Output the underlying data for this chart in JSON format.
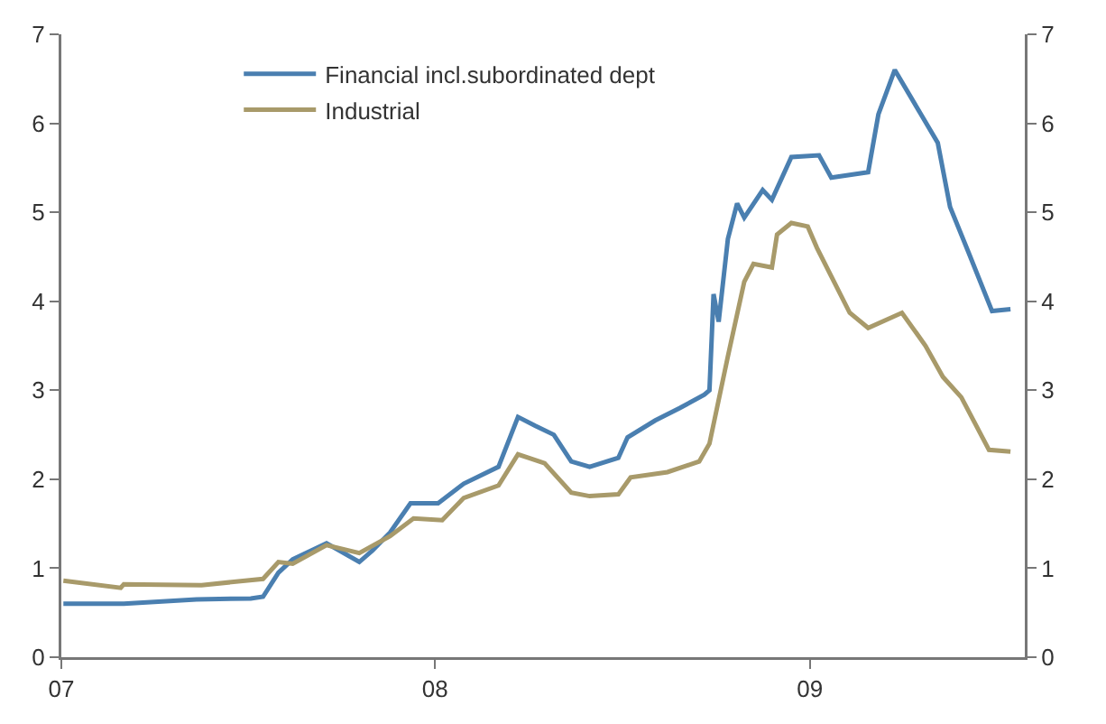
{
  "chart_data": {
    "type": "line",
    "series": [
      {
        "name": "Financial incl.subordinated dept",
        "color": "#4a7fb0",
        "x": [
          "2007-01-03",
          "2007-03-03",
          "2007-05-13",
          "2007-07-05",
          "2007-07-17",
          "2007-08-01",
          "2007-08-15",
          "2007-09-17",
          "2007-10-19",
          "2007-11-01",
          "2007-11-18",
          "2007-12-08",
          "2008-01-04",
          "2008-01-29",
          "2008-03-03",
          "2008-03-22",
          "2008-04-08",
          "2008-04-26",
          "2008-05-13",
          "2008-05-31",
          "2008-06-28",
          "2008-07-07",
          "2008-08-03",
          "2008-08-27",
          "2008-09-20",
          "2008-09-25",
          "2008-09-29",
          "2008-10-04",
          "2008-10-13",
          "2008-10-22",
          "2008-10-29",
          "2008-11-16",
          "2008-11-25",
          "2008-12-14",
          "2009-01-10",
          "2009-01-22",
          "2009-02-27",
          "2009-03-09",
          "2009-03-25",
          "2009-05-06",
          "2009-05-18",
          "2009-06-05",
          "2009-06-28",
          "2009-07-16"
        ],
        "values": [
          0.6,
          0.6,
          0.65,
          0.66,
          0.68,
          0.95,
          1.1,
          1.28,
          1.07,
          1.2,
          1.4,
          1.73,
          1.73,
          1.95,
          2.14,
          2.7,
          2.6,
          2.5,
          2.2,
          2.14,
          2.24,
          2.47,
          2.66,
          2.8,
          2.95,
          3.0,
          4.08,
          3.77,
          4.7,
          5.1,
          4.94,
          5.25,
          5.14,
          5.62,
          5.64,
          5.39,
          5.45,
          6.1,
          6.6,
          5.78,
          5.06,
          4.55,
          3.89,
          3.91
        ]
      },
      {
        "name": "Industrial",
        "color": "#a89a6a",
        "x": [
          "2007-01-03",
          "2007-02-28",
          "2007-03-03",
          "2007-05-18",
          "2007-07-17",
          "2007-08-01",
          "2007-08-15",
          "2007-09-17",
          "2007-10-19",
          "2007-11-18",
          "2007-12-11",
          "2008-01-08",
          "2008-01-29",
          "2008-03-03",
          "2008-03-22",
          "2008-04-17",
          "2008-05-13",
          "2008-05-31",
          "2008-06-28",
          "2008-07-10",
          "2008-08-15",
          "2008-09-15",
          "2008-09-25",
          "2008-10-13",
          "2008-10-29",
          "2008-11-07",
          "2008-11-25",
          "2008-11-30",
          "2008-12-14",
          "2008-12-30",
          "2009-01-08",
          "2009-01-22",
          "2009-02-09",
          "2009-02-27",
          "2009-04-01",
          "2009-04-24",
          "2009-05-11",
          "2009-05-29",
          "2009-06-25",
          "2009-07-16"
        ],
        "values": [
          0.86,
          0.78,
          0.82,
          0.81,
          0.88,
          1.07,
          1.05,
          1.26,
          1.17,
          1.36,
          1.56,
          1.54,
          1.79,
          1.93,
          2.28,
          2.18,
          1.85,
          1.81,
          1.83,
          2.02,
          2.08,
          2.2,
          2.4,
          3.38,
          4.22,
          4.42,
          4.38,
          4.75,
          4.88,
          4.84,
          4.6,
          4.28,
          3.87,
          3.7,
          3.87,
          3.5,
          3.15,
          2.92,
          2.33,
          2.31
        ]
      }
    ],
    "xlim": [
      "2007-01-01",
      "2009-07-30"
    ],
    "xticks": [
      {
        "value": "2007-01-01",
        "label": "07"
      },
      {
        "value": "2008-01-01",
        "label": "08"
      },
      {
        "value": "2009-01-01",
        "label": "09"
      }
    ],
    "ylim": [
      0,
      7
    ],
    "yticks": [
      0,
      1,
      2,
      3,
      4,
      5,
      6,
      7
    ],
    "y2lim": [
      0,
      7
    ],
    "y2ticks": [
      0,
      1,
      2,
      3,
      4,
      5,
      6,
      7
    ],
    "grid": false,
    "legend": "top left",
    "marker": "none",
    "line_style": "solid"
  }
}
